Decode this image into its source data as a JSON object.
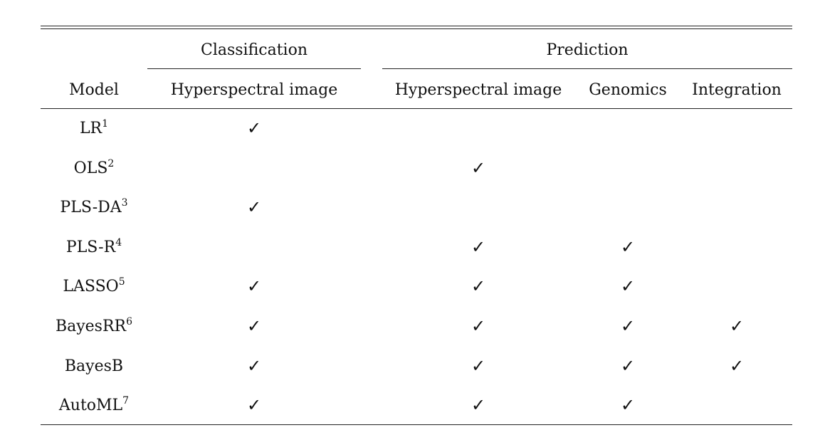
{
  "table": {
    "groups": {
      "classification": "Classification",
      "prediction": "Prediction"
    },
    "headers": {
      "model": "Model",
      "class_hyperspectral": "Hyperspectral image",
      "pred_hyperspectral": "Hyperspectral image",
      "pred_genomics": "Genomics",
      "pred_integration": "Integration"
    },
    "check_symbol": "✓",
    "rows": [
      {
        "model": "LR",
        "sup": "1",
        "class_hyperspectral": "✓",
        "pred_hyperspectral": "",
        "pred_genomics": "",
        "pred_integration": ""
      },
      {
        "model": "OLS",
        "sup": "2",
        "class_hyperspectral": "",
        "pred_hyperspectral": "✓",
        "pred_genomics": "",
        "pred_integration": ""
      },
      {
        "model": "PLS-DA",
        "sup": "3",
        "class_hyperspectral": "✓",
        "pred_hyperspectral": "",
        "pred_genomics": "",
        "pred_integration": ""
      },
      {
        "model": "PLS-R",
        "sup": "4",
        "class_hyperspectral": "",
        "pred_hyperspectral": "✓",
        "pred_genomics": "✓",
        "pred_integration": ""
      },
      {
        "model": "LASSO",
        "sup": "5",
        "class_hyperspectral": "✓",
        "pred_hyperspectral": "✓",
        "pred_genomics": "✓",
        "pred_integration": ""
      },
      {
        "model": "BayesRR",
        "sup": "6",
        "class_hyperspectral": "✓",
        "pred_hyperspectral": "✓",
        "pred_genomics": "✓",
        "pred_integration": "✓"
      },
      {
        "model": "BayesB",
        "sup": "",
        "class_hyperspectral": "✓",
        "pred_hyperspectral": "✓",
        "pred_genomics": "✓",
        "pred_integration": "✓"
      },
      {
        "model": "AutoML",
        "sup": "7",
        "class_hyperspectral": "✓",
        "pred_hyperspectral": "✓",
        "pred_genomics": "✓",
        "pred_integration": ""
      }
    ]
  }
}
